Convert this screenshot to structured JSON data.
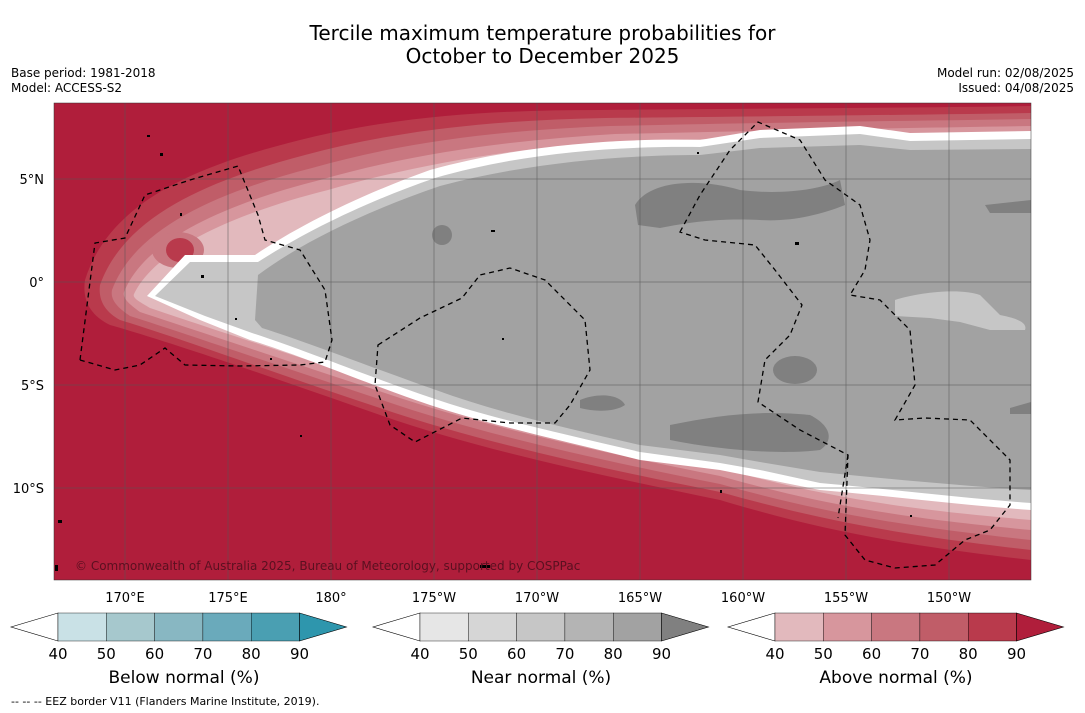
{
  "title": {
    "line1": "Tercile maximum temperature probabilities for",
    "line2": "October to December 2025"
  },
  "meta_left": {
    "base_period": "Base period: 1981-2018",
    "model": "Model: ACCESS-S2"
  },
  "meta_right": {
    "model_run": "Model run: 02/08/2025",
    "issued": "Issued: 04/08/2025"
  },
  "map": {
    "copyright": "© Commonwealth of Australia 2025, Bureau of Meteorology, supported by COSPPac",
    "lat_labels": [
      "5°N",
      "0°",
      "5°S",
      "10°S"
    ],
    "lon_labels": [
      "170°E",
      "175°E",
      "180°",
      "175°W",
      "170°W",
      "165°W",
      "160°W",
      "155°W",
      "150°W"
    ]
  },
  "colorbars": [
    {
      "name": "below",
      "title": "Below normal (%)",
      "ticks": [
        "40",
        "50",
        "60",
        "70",
        "80",
        "90"
      ],
      "colors": [
        "#c9e1e6",
        "#a6c8cd",
        "#88b7c2",
        "#6aaabb",
        "#4a9fb2",
        "#2e96ad"
      ]
    },
    {
      "name": "near",
      "title": "Near normal (%)",
      "ticks": [
        "40",
        "50",
        "60",
        "70",
        "80",
        "90"
      ],
      "colors": [
        "#e6e6e6",
        "#d6d6d6",
        "#c6c6c6",
        "#b4b4b4",
        "#a2a2a2",
        "#808080"
      ]
    },
    {
      "name": "above",
      "title": "Above normal (%)",
      "ticks": [
        "40",
        "50",
        "60",
        "70",
        "80",
        "90"
      ],
      "colors": [
        "#e2b9bd",
        "#d7969d",
        "#c97780",
        "#c05d68",
        "#b93a4c",
        "#b01e3b"
      ]
    }
  ],
  "footer": {
    "eez_note": "--  --  -- EEZ border V11 (Flanders Marine Institute, 2019)."
  }
}
